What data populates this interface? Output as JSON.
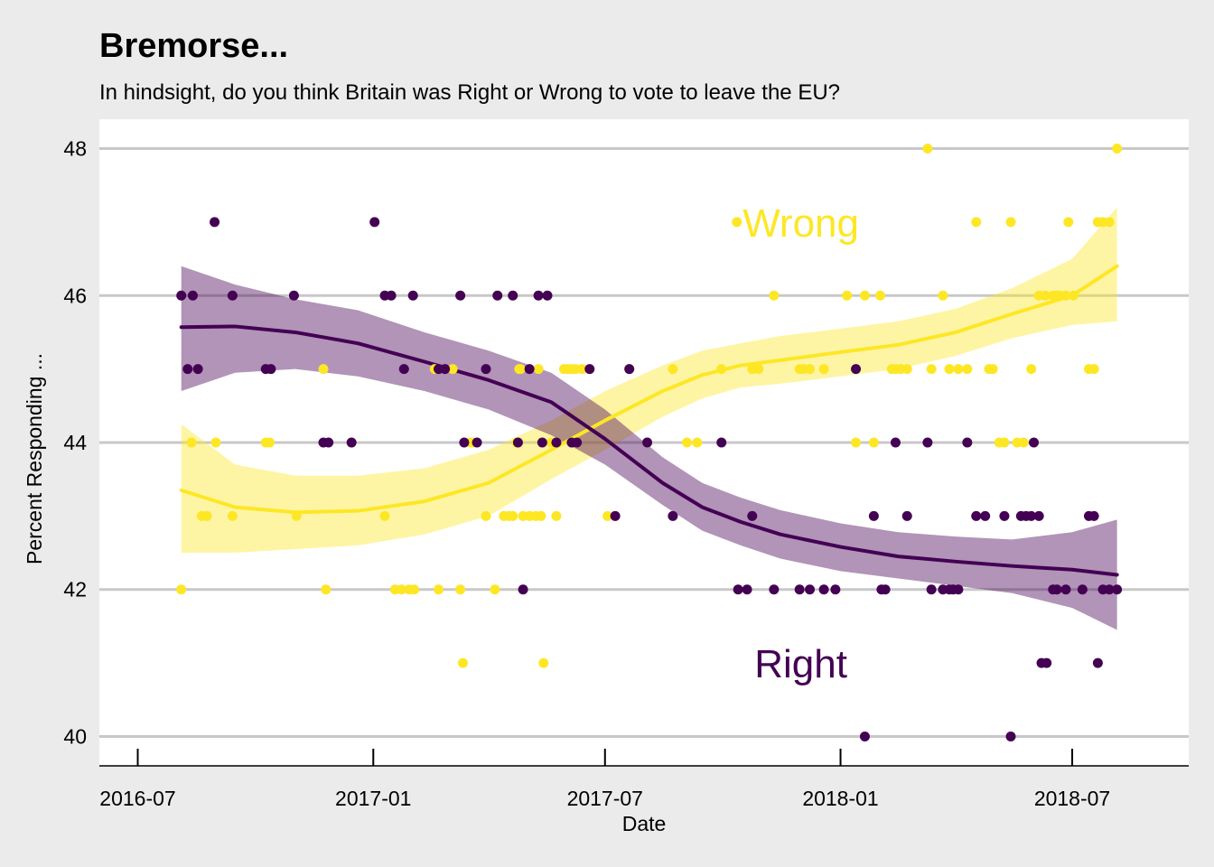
{
  "chart_data": {
    "type": "scatter",
    "title": "Bremorse...",
    "subtitle": "In hindsight, do you think Britain was Right or Wrong to vote to leave the EU?",
    "xlabel": "Date",
    "ylabel": "Percent Responding ...",
    "xlim": [
      "2016-06-01",
      "2018-09-30"
    ],
    "ylim": [
      39.6,
      48.4
    ],
    "x_ticks": [
      "2016-07",
      "2017-01",
      "2017-07",
      "2018-01",
      "2018-07"
    ],
    "y_ticks": [
      40,
      42,
      44,
      46,
      48
    ],
    "grid": "horizontal major only",
    "legend": "none (direct labels)",
    "annotations": [
      {
        "text": "Wrong",
        "x": "2017-12-01",
        "y": 47.0,
        "series": "Wrong"
      },
      {
        "text": "Right",
        "x": "2017-12-01",
        "y": 41.0,
        "series": "Right"
      }
    ],
    "series": [
      {
        "key": "wrong",
        "color": "#fde725",
        "points": [
          [
            "2016-08-04",
            42
          ],
          [
            "2016-08-12",
            44
          ],
          [
            "2016-08-20",
            43
          ],
          [
            "2016-08-24",
            43
          ],
          [
            "2016-08-31",
            44
          ],
          [
            "2016-09-13",
            43
          ],
          [
            "2016-10-09",
            44
          ],
          [
            "2016-10-12",
            44
          ],
          [
            "2016-11-02",
            43
          ],
          [
            "2016-11-23",
            45
          ],
          [
            "2016-11-25",
            42
          ],
          [
            "2016-12-15",
            44
          ],
          [
            "2017-01-10",
            43
          ],
          [
            "2017-01-18",
            42
          ],
          [
            "2017-01-23",
            42
          ],
          [
            "2017-01-29",
            42
          ],
          [
            "2017-02-02",
            42
          ],
          [
            "2017-02-18",
            45
          ],
          [
            "2017-02-21",
            42
          ],
          [
            "2017-03-04",
            45
          ],
          [
            "2017-03-10",
            42
          ],
          [
            "2017-03-12",
            41
          ],
          [
            "2017-03-18",
            44
          ],
          [
            "2017-03-20",
            44
          ],
          [
            "2017-03-30",
            43
          ],
          [
            "2017-04-06",
            42
          ],
          [
            "2017-04-13",
            43
          ],
          [
            "2017-04-17",
            43
          ],
          [
            "2017-04-20",
            43
          ],
          [
            "2017-04-23",
            44
          ],
          [
            "2017-04-25",
            45
          ],
          [
            "2017-04-26",
            45
          ],
          [
            "2017-04-28",
            43
          ],
          [
            "2017-05-03",
            43
          ],
          [
            "2017-05-08",
            43
          ],
          [
            "2017-05-10",
            45
          ],
          [
            "2017-05-12",
            43
          ],
          [
            "2017-05-14",
            41
          ],
          [
            "2017-05-20",
            44
          ],
          [
            "2017-05-24",
            43
          ],
          [
            "2017-05-30",
            45
          ],
          [
            "2017-06-02",
            45
          ],
          [
            "2017-06-05",
            45
          ],
          [
            "2017-06-08",
            45
          ],
          [
            "2017-06-13",
            45
          ],
          [
            "2017-07-03",
            43
          ],
          [
            "2017-07-09",
            43
          ],
          [
            "2017-07-20",
            45
          ],
          [
            "2017-08-03",
            44
          ],
          [
            "2017-08-23",
            45
          ],
          [
            "2017-09-03",
            44
          ],
          [
            "2017-09-11",
            44
          ],
          [
            "2017-09-30",
            45
          ],
          [
            "2017-10-12",
            47
          ],
          [
            "2017-10-24",
            45
          ],
          [
            "2017-10-29",
            45
          ],
          [
            "2017-11-10",
            46
          ],
          [
            "2017-11-30",
            45
          ],
          [
            "2017-12-03",
            45
          ],
          [
            "2017-12-08",
            45
          ],
          [
            "2017-12-19",
            45
          ],
          [
            "2018-01-06",
            46
          ],
          [
            "2018-01-13",
            44
          ],
          [
            "2018-01-20",
            46
          ],
          [
            "2018-01-27",
            44
          ],
          [
            "2018-02-01",
            46
          ],
          [
            "2018-02-10",
            45
          ],
          [
            "2018-02-13",
            45
          ],
          [
            "2018-02-17",
            45
          ],
          [
            "2018-02-22",
            45
          ],
          [
            "2018-03-10",
            48
          ],
          [
            "2018-03-13",
            45
          ],
          [
            "2018-03-22",
            46
          ],
          [
            "2018-03-27",
            45
          ],
          [
            "2018-04-03",
            45
          ],
          [
            "2018-04-10",
            45
          ],
          [
            "2018-04-17",
            47
          ],
          [
            "2018-04-27",
            45
          ],
          [
            "2018-04-30",
            45
          ],
          [
            "2018-05-05",
            44
          ],
          [
            "2018-05-09",
            44
          ],
          [
            "2018-05-14",
            47
          ],
          [
            "2018-05-19",
            44
          ],
          [
            "2018-05-24",
            44
          ],
          [
            "2018-05-30",
            45
          ],
          [
            "2018-06-05",
            46
          ],
          [
            "2018-06-10",
            46
          ],
          [
            "2018-06-16",
            46
          ],
          [
            "2018-06-19",
            46
          ],
          [
            "2018-06-21",
            46
          ],
          [
            "2018-06-26",
            46
          ],
          [
            "2018-06-28",
            47
          ],
          [
            "2018-07-02",
            46
          ],
          [
            "2018-07-14",
            45
          ],
          [
            "2018-07-18",
            45
          ],
          [
            "2018-07-21",
            47
          ],
          [
            "2018-07-25",
            47
          ],
          [
            "2018-07-30",
            47
          ],
          [
            "2018-08-05",
            48
          ]
        ],
        "trend": [
          [
            "2016-08-04",
            43.35
          ],
          [
            "2016-09-15",
            43.12
          ],
          [
            "2016-11-01",
            43.05
          ],
          [
            "2016-12-20",
            43.07
          ],
          [
            "2017-02-10",
            43.2
          ],
          [
            "2017-04-01",
            43.45
          ],
          [
            "2017-05-20",
            43.9
          ],
          [
            "2017-07-01",
            44.3
          ],
          [
            "2017-08-15",
            44.7
          ],
          [
            "2017-09-15",
            44.92
          ],
          [
            "2017-10-15",
            45.05
          ],
          [
            "2017-11-15",
            45.12
          ],
          [
            "2018-01-01",
            45.23
          ],
          [
            "2018-02-15",
            45.33
          ],
          [
            "2018-04-01",
            45.5
          ],
          [
            "2018-05-15",
            45.75
          ],
          [
            "2018-07-01",
            46.0
          ],
          [
            "2018-08-05",
            46.4
          ]
        ],
        "band": [
          [
            "2016-08-04",
            42.5,
            44.25
          ],
          [
            "2016-09-15",
            42.5,
            43.7
          ],
          [
            "2016-11-01",
            42.55,
            43.55
          ],
          [
            "2016-12-20",
            42.6,
            43.55
          ],
          [
            "2017-02-10",
            42.75,
            43.65
          ],
          [
            "2017-04-01",
            43.0,
            43.9
          ],
          [
            "2017-05-20",
            43.5,
            44.3
          ],
          [
            "2017-07-01",
            43.9,
            44.7
          ],
          [
            "2017-08-15",
            44.35,
            45.05
          ],
          [
            "2017-09-15",
            44.6,
            45.25
          ],
          [
            "2017-10-15",
            44.75,
            45.35
          ],
          [
            "2017-11-15",
            44.8,
            45.45
          ],
          [
            "2018-01-01",
            44.9,
            45.55
          ],
          [
            "2018-02-15",
            45.0,
            45.65
          ],
          [
            "2018-04-01",
            45.18,
            45.82
          ],
          [
            "2018-05-15",
            45.42,
            46.1
          ],
          [
            "2018-07-01",
            45.6,
            46.5
          ],
          [
            "2018-08-05",
            45.65,
            47.2
          ]
        ]
      },
      {
        "key": "right",
        "color": "#440154",
        "points": [
          [
            "2016-08-04",
            46
          ],
          [
            "2016-08-09",
            45
          ],
          [
            "2016-08-13",
            46
          ],
          [
            "2016-08-17",
            45
          ],
          [
            "2016-08-30",
            47
          ],
          [
            "2016-09-13",
            46
          ],
          [
            "2016-10-09",
            45
          ],
          [
            "2016-10-13",
            45
          ],
          [
            "2016-10-31",
            46
          ],
          [
            "2016-11-23",
            44
          ],
          [
            "2016-11-27",
            44
          ],
          [
            "2016-12-15",
            44
          ],
          [
            "2017-01-02",
            47
          ],
          [
            "2017-01-10",
            46
          ],
          [
            "2017-01-15",
            46
          ],
          [
            "2017-01-25",
            45
          ],
          [
            "2017-02-01",
            46
          ],
          [
            "2017-02-21",
            45
          ],
          [
            "2017-02-26",
            45
          ],
          [
            "2017-03-10",
            46
          ],
          [
            "2017-03-13",
            44
          ],
          [
            "2017-03-23",
            44
          ],
          [
            "2017-03-30",
            45
          ],
          [
            "2017-04-08",
            46
          ],
          [
            "2017-04-20",
            46
          ],
          [
            "2017-04-24",
            44
          ],
          [
            "2017-04-28",
            42
          ],
          [
            "2017-05-03",
            45
          ],
          [
            "2017-05-10",
            46
          ],
          [
            "2017-05-13",
            44
          ],
          [
            "2017-05-17",
            46
          ],
          [
            "2017-05-24",
            44
          ],
          [
            "2017-06-05",
            44
          ],
          [
            "2017-06-09",
            44
          ],
          [
            "2017-06-19",
            45
          ],
          [
            "2017-07-09",
            43
          ],
          [
            "2017-07-20",
            45
          ],
          [
            "2017-08-03",
            44
          ],
          [
            "2017-08-23",
            43
          ],
          [
            "2017-09-30",
            44
          ],
          [
            "2017-10-13",
            42
          ],
          [
            "2017-10-20",
            42
          ],
          [
            "2017-10-24",
            43
          ],
          [
            "2017-11-10",
            42
          ],
          [
            "2017-11-30",
            42
          ],
          [
            "2017-12-08",
            42
          ],
          [
            "2017-12-19",
            42
          ],
          [
            "2017-12-28",
            42
          ],
          [
            "2018-01-13",
            45
          ],
          [
            "2018-01-20",
            40
          ],
          [
            "2018-01-27",
            43
          ],
          [
            "2018-02-02",
            42
          ],
          [
            "2018-02-05",
            42
          ],
          [
            "2018-02-13",
            44
          ],
          [
            "2018-02-22",
            43
          ],
          [
            "2018-03-10",
            44
          ],
          [
            "2018-03-13",
            42
          ],
          [
            "2018-03-22",
            42
          ],
          [
            "2018-03-27",
            42
          ],
          [
            "2018-03-30",
            42
          ],
          [
            "2018-04-03",
            42
          ],
          [
            "2018-04-10",
            44
          ],
          [
            "2018-04-17",
            43
          ],
          [
            "2018-04-24",
            43
          ],
          [
            "2018-05-09",
            43
          ],
          [
            "2018-05-14",
            40
          ],
          [
            "2018-05-22",
            43
          ],
          [
            "2018-05-26",
            43
          ],
          [
            "2018-05-30",
            43
          ],
          [
            "2018-06-01",
            44
          ],
          [
            "2018-06-05",
            43
          ],
          [
            "2018-06-07",
            41
          ],
          [
            "2018-06-11",
            41
          ],
          [
            "2018-06-16",
            42
          ],
          [
            "2018-06-19",
            42
          ],
          [
            "2018-06-26",
            42
          ],
          [
            "2018-07-09",
            42
          ],
          [
            "2018-07-14",
            43
          ],
          [
            "2018-07-18",
            43
          ],
          [
            "2018-07-21",
            41
          ],
          [
            "2018-07-25",
            42
          ],
          [
            "2018-07-30",
            42
          ],
          [
            "2018-08-05",
            42
          ]
        ],
        "trend": [
          [
            "2016-08-04",
            45.57
          ],
          [
            "2016-09-15",
            45.58
          ],
          [
            "2016-11-01",
            45.5
          ],
          [
            "2016-12-20",
            45.35
          ],
          [
            "2017-02-10",
            45.1
          ],
          [
            "2017-04-01",
            44.85
          ],
          [
            "2017-05-20",
            44.55
          ],
          [
            "2017-07-01",
            44.05
          ],
          [
            "2017-08-15",
            43.45
          ],
          [
            "2017-09-15",
            43.12
          ],
          [
            "2017-10-15",
            42.92
          ],
          [
            "2017-11-15",
            42.75
          ],
          [
            "2018-01-01",
            42.58
          ],
          [
            "2018-02-15",
            42.45
          ],
          [
            "2018-04-01",
            42.38
          ],
          [
            "2018-05-15",
            42.32
          ],
          [
            "2018-07-01",
            42.27
          ],
          [
            "2018-08-05",
            42.2
          ]
        ],
        "band": [
          [
            "2016-08-04",
            44.7,
            46.4
          ],
          [
            "2016-09-15",
            44.95,
            46.15
          ],
          [
            "2016-11-01",
            45.0,
            45.95
          ],
          [
            "2016-12-20",
            44.9,
            45.8
          ],
          [
            "2017-02-10",
            44.7,
            45.5
          ],
          [
            "2017-04-01",
            44.45,
            45.25
          ],
          [
            "2017-05-20",
            44.1,
            44.95
          ],
          [
            "2017-07-01",
            43.7,
            44.45
          ],
          [
            "2017-08-15",
            43.15,
            43.8
          ],
          [
            "2017-09-15",
            42.8,
            43.45
          ],
          [
            "2017-10-15",
            42.6,
            43.25
          ],
          [
            "2017-11-15",
            42.42,
            43.08
          ],
          [
            "2018-01-01",
            42.25,
            42.9
          ],
          [
            "2018-02-15",
            42.15,
            42.78
          ],
          [
            "2018-04-01",
            42.05,
            42.72
          ],
          [
            "2018-05-15",
            41.95,
            42.68
          ],
          [
            "2018-07-01",
            41.75,
            42.78
          ],
          [
            "2018-08-05",
            41.45,
            42.95
          ]
        ]
      }
    ]
  }
}
